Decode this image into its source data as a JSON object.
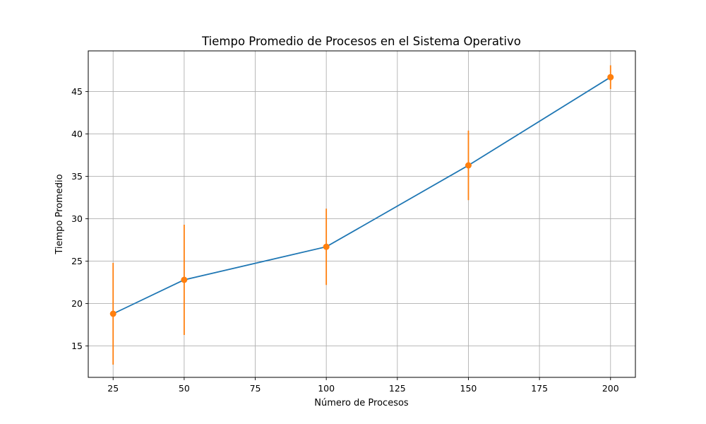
{
  "chart_data": {
    "type": "line",
    "title": "Tiempo Promedio de Procesos en el Sistema Operativo",
    "xlabel": "Número de Procesos",
    "ylabel": "Tiempo Promedio",
    "xlim": [
      16.25,
      208.75
    ],
    "ylim": [
      11.3,
      49.8
    ],
    "xticks": [
      25,
      50,
      75,
      100,
      125,
      150,
      175,
      200
    ],
    "yticks": [
      15,
      20,
      25,
      30,
      35,
      40,
      45
    ],
    "grid": true,
    "series": [
      {
        "x": [
          25,
          50,
          100,
          150,
          200
        ],
        "y": [
          18.8,
          22.8,
          26.7,
          36.3,
          46.7
        ],
        "yerr": [
          6.0,
          6.5,
          4.5,
          4.1,
          1.4
        ],
        "line_color": "#1f77b4",
        "marker_color": "#ff7f0e"
      }
    ]
  }
}
